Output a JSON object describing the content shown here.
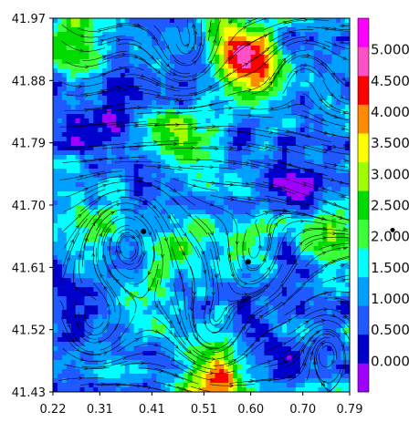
{
  "chart_data": {
    "type": "heatmap",
    "title": "",
    "xlabel": "",
    "ylabel": "",
    "x_ticks": [
      "0.22",
      "0.31",
      "0.41",
      "0.51",
      "0.60",
      "0.70",
      "0.79"
    ],
    "y_ticks": [
      "41.97",
      "41.88",
      "41.79",
      "41.70",
      "41.61",
      "41.52",
      "41.43"
    ],
    "xlim": [
      0.22,
      0.79
    ],
    "ylim": [
      41.43,
      41.97
    ],
    "overlay": "streamlines",
    "colorbar": {
      "ticks": [
        "0.000",
        "0.500",
        "1.000",
        "1.500",
        "2.000",
        "2.500",
        "3.000",
        "3.500",
        "4.000",
        "4.500",
        "5.000"
      ],
      "levels": [
        -0.5,
        0.0,
        0.5,
        1.0,
        1.5,
        2.0,
        2.5,
        3.0,
        3.5,
        4.0,
        4.5,
        5.0,
        5.5
      ],
      "colors": [
        "#a000ff",
        "#0000cd",
        "#1e5aff",
        "#00a0ff",
        "#00ffff",
        "#3cff3c",
        "#00dc00",
        "#a0ff00",
        "#ffff00",
        "#ff8c00",
        "#ff0000",
        "#ff50c8",
        "#ff00ff"
      ],
      "marker_value": 2.1
    },
    "marked_points": [
      {
        "x": 0.394,
        "y": 41.662
      },
      {
        "x": 0.595,
        "y": 41.618
      }
    ],
    "features": [
      {
        "x": 0.6,
        "y": 41.89,
        "value": 3.9
      },
      {
        "x": 0.57,
        "y": 41.93,
        "value": 3.8
      },
      {
        "x": 0.47,
        "y": 41.79,
        "value": 3.2
      },
      {
        "x": 0.53,
        "y": 41.44,
        "value": 4.8
      },
      {
        "x": 0.26,
        "y": 41.95,
        "value": 2.8
      },
      {
        "x": 0.77,
        "y": 41.66,
        "value": 2.9
      },
      {
        "x": 0.32,
        "y": 41.68,
        "value": 2.2
      },
      {
        "x": 0.47,
        "y": 41.65,
        "value": 2.1
      },
      {
        "x": 0.6,
        "y": 41.66,
        "value": 2.0
      },
      {
        "x": 0.37,
        "y": 41.56,
        "value": 2.3
      },
      {
        "x": 0.31,
        "y": 41.83,
        "value": 0.3
      },
      {
        "x": 0.48,
        "y": 41.87,
        "value": 0.5
      },
      {
        "x": 0.4,
        "y": 41.72,
        "value": 0.6
      },
      {
        "x": 0.7,
        "y": 41.72,
        "value": 0.3
      },
      {
        "x": 0.75,
        "y": 41.58,
        "value": 0.5
      },
      {
        "x": 0.27,
        "y": 41.5,
        "value": 0.4
      },
      {
        "x": 0.65,
        "y": 41.47,
        "value": 0.6
      },
      {
        "x": 0.7,
        "y": 41.9,
        "value": 0.9
      }
    ],
    "flow_fields": [
      {
        "type": "background",
        "u": 0.45,
        "v": 0.0
      },
      {
        "type": "jet",
        "y": 41.8,
        "width": 0.05,
        "strength": 2.0
      },
      {
        "type": "vortex",
        "x": 0.48,
        "y": 41.9,
        "radius": 0.07,
        "strength": 1.0
      },
      {
        "type": "vortex",
        "x": 0.7,
        "y": 41.88,
        "radius": 0.06,
        "strength": -1.0
      },
      {
        "type": "vortex",
        "x": 0.36,
        "y": 41.66,
        "radius": 0.08,
        "strength": -1.2
      },
      {
        "type": "vortex",
        "x": 0.6,
        "y": 41.61,
        "radius": 0.07,
        "strength": 1.0
      },
      {
        "type": "vortex",
        "x": 0.53,
        "y": 41.52,
        "radius": 0.06,
        "strength": 1.0
      },
      {
        "type": "vortex",
        "x": 0.3,
        "y": 41.53,
        "radius": 0.05,
        "strength": 0.8
      },
      {
        "type": "vortex",
        "x": 0.75,
        "y": 41.5,
        "radius": 0.05,
        "strength": -0.8
      }
    ]
  }
}
